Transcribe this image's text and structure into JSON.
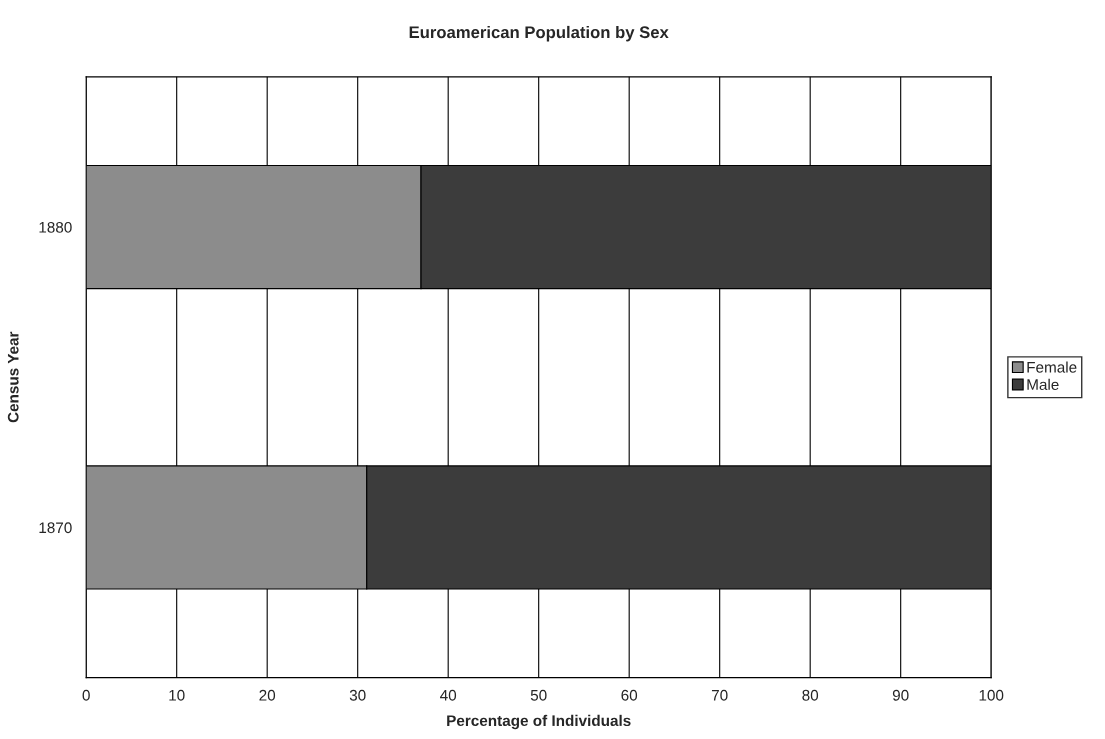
{
  "chart_data": {
    "type": "bar",
    "title": "Euroamerican Population by Sex",
    "xlabel": "Percentage of Individuals",
    "ylabel": "Census Year",
    "categories": [
      "1880",
      "1870"
    ],
    "orientation": "horizontal",
    "stacked": true,
    "series": [
      {
        "name": "Female",
        "color": "#8c8c8c",
        "values": [
          37,
          31
        ]
      },
      {
        "name": "Male",
        "color": "#3c3c3c",
        "values": [
          63,
          69
        ]
      }
    ],
    "xlim": [
      0,
      100
    ],
    "xticks": [
      0,
      10,
      20,
      30,
      40,
      50,
      60,
      70,
      80,
      90,
      100
    ],
    "grid": "x",
    "legend": "right"
  }
}
